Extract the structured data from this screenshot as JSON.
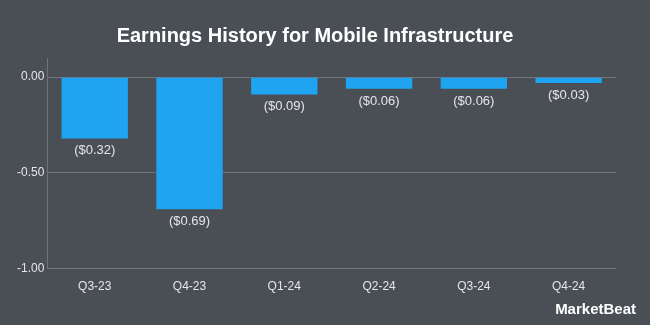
{
  "chart_data": {
    "type": "bar",
    "title": "Earnings History for Mobile Infrastructure",
    "categories": [
      "Q3-23",
      "Q4-23",
      "Q1-24",
      "Q2-24",
      "Q3-24",
      "Q4-24"
    ],
    "values": [
      -0.32,
      -0.69,
      -0.09,
      -0.06,
      -0.06,
      -0.03
    ],
    "value_labels": [
      "($0.32)",
      "($0.69)",
      "($0.09)",
      "($0.06)",
      "($0.06)",
      "($0.03)"
    ],
    "color": "#1ea4f1",
    "ylim": [
      -1,
      0.1
    ],
    "yticks": [
      {
        "value": 0,
        "label": "0.00"
      },
      {
        "value": -0.5,
        "label": "-0.50"
      },
      {
        "value": -1,
        "label": "-1.00"
      }
    ],
    "grid": true,
    "data_labels": true,
    "annotations": [
      "MarketBeat"
    ]
  }
}
